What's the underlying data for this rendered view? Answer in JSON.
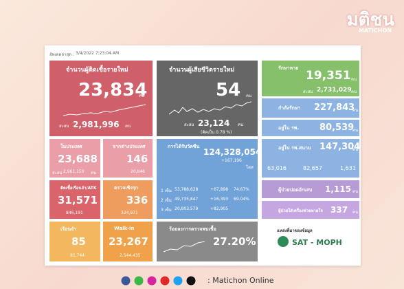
{
  "header": {
    "brand": "มติชน",
    "brand_sub": "MATICHON",
    "updated_label": "อัพเดตล่าสุด :",
    "updated": "3/4/2022 7:23:04 AM"
  },
  "new_cases": {
    "label": "จำนวนผู้ติดเชื้อรายใหม่",
    "value": "23,834",
    "unit": "คน",
    "total_label": "สะสม",
    "total": "2,981,996",
    "total_unit": "คน"
  },
  "new_deaths": {
    "label": "จำนวนผู้เสียชีวิตรายใหม่",
    "value": "54",
    "unit": "คน",
    "total_label": "สะสม",
    "total": "23,124",
    "total_unit": "คน",
    "rate": "(คิดเป็น 0.78 %)"
  },
  "recovered": {
    "label": "รักษาหาย",
    "value": "19,351",
    "unit": "คน",
    "total_label": "สะสม",
    "total": "2,731,029",
    "total_unit": "คน"
  },
  "treating": {
    "label": "กำลังรักษา",
    "value": "227,843",
    "unit": "คน"
  },
  "hospital": {
    "label": "อยู่ใน รพ.",
    "value": "80,539",
    "unit": "คน"
  },
  "field_hospital": {
    "label": "อยู่ใน รพ.สนาม",
    "value": "147,304",
    "unit": "คน",
    "sub": [
      "63,016",
      "82,657",
      "1,631"
    ]
  },
  "pneumonia": {
    "label": "ผู้ป่วยปอดอักเสบ",
    "value": "1,115",
    "unit": "คน"
  },
  "ventilator": {
    "label": "ผู้ป่วยใส่เครื่องช่วยหายใจ",
    "value": "337",
    "unit": "คน"
  },
  "domestic": {
    "label": "ในประเทศ",
    "value": "23,688",
    "total_label": "สะสม",
    "total": "2,961,150",
    "total_unit": "คน"
  },
  "imported": {
    "label": "จากต่างประเทศ",
    "value": "146",
    "total": "20,846"
  },
  "atk": {
    "label": "ติดเชื้อเรือนจำ/ATK",
    "value": "31,571",
    "total": "846,191"
  },
  "proactive": {
    "label": "ตรวจเชิงรุก",
    "value": "336",
    "total": "324,971"
  },
  "prison": {
    "label": "เรือนจำ",
    "value": "85",
    "total": "91,744"
  },
  "walkin": {
    "label": "Walk-in",
    "value": "23,267",
    "total": "2,544,435"
  },
  "vaccine": {
    "label": "การได้รับวัคซีน",
    "value": "124,328,054",
    "daily": "+167,196",
    "unit": "โดส",
    "rows": [
      [
        "1 เข็ม",
        "53,788,628",
        "+67,898",
        "74.67%"
      ],
      [
        "2 เข็ม",
        "49,735,847",
        "+16,393",
        "69.04%"
      ],
      [
        "3 เข็ม",
        "20,803,579",
        "+82,905"
      ]
    ]
  },
  "positivity": {
    "label": "ร้อยละการตรวจพบเชื้อ",
    "value": "27.20%"
  },
  "source": {
    "label": "แหล่งที่มาของข้อมูล",
    "name": "SAT - MOPH"
  },
  "footer": {
    "text": ": Matichon Online"
  }
}
